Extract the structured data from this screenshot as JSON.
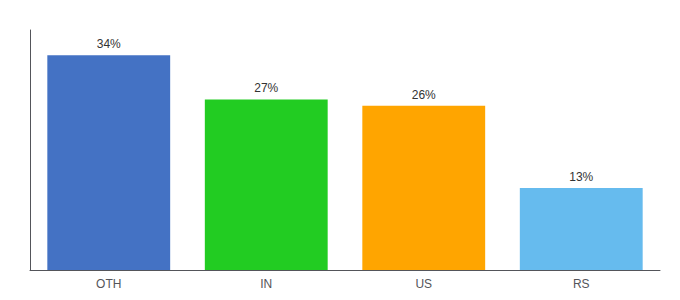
{
  "chart_data": {
    "type": "bar",
    "categories": [
      "OTH",
      "IN",
      "US",
      "RS"
    ],
    "values": [
      34,
      27,
      26,
      13
    ],
    "value_labels": [
      "34%",
      "27%",
      "26%",
      "13%"
    ],
    "colors": [
      "#4472C4",
      "#22CC22",
      "#FFA500",
      "#66BBEE"
    ],
    "ylim": [
      0,
      38
    ],
    "data_labels": true,
    "tick_labels": "x",
    "grid": false
  }
}
